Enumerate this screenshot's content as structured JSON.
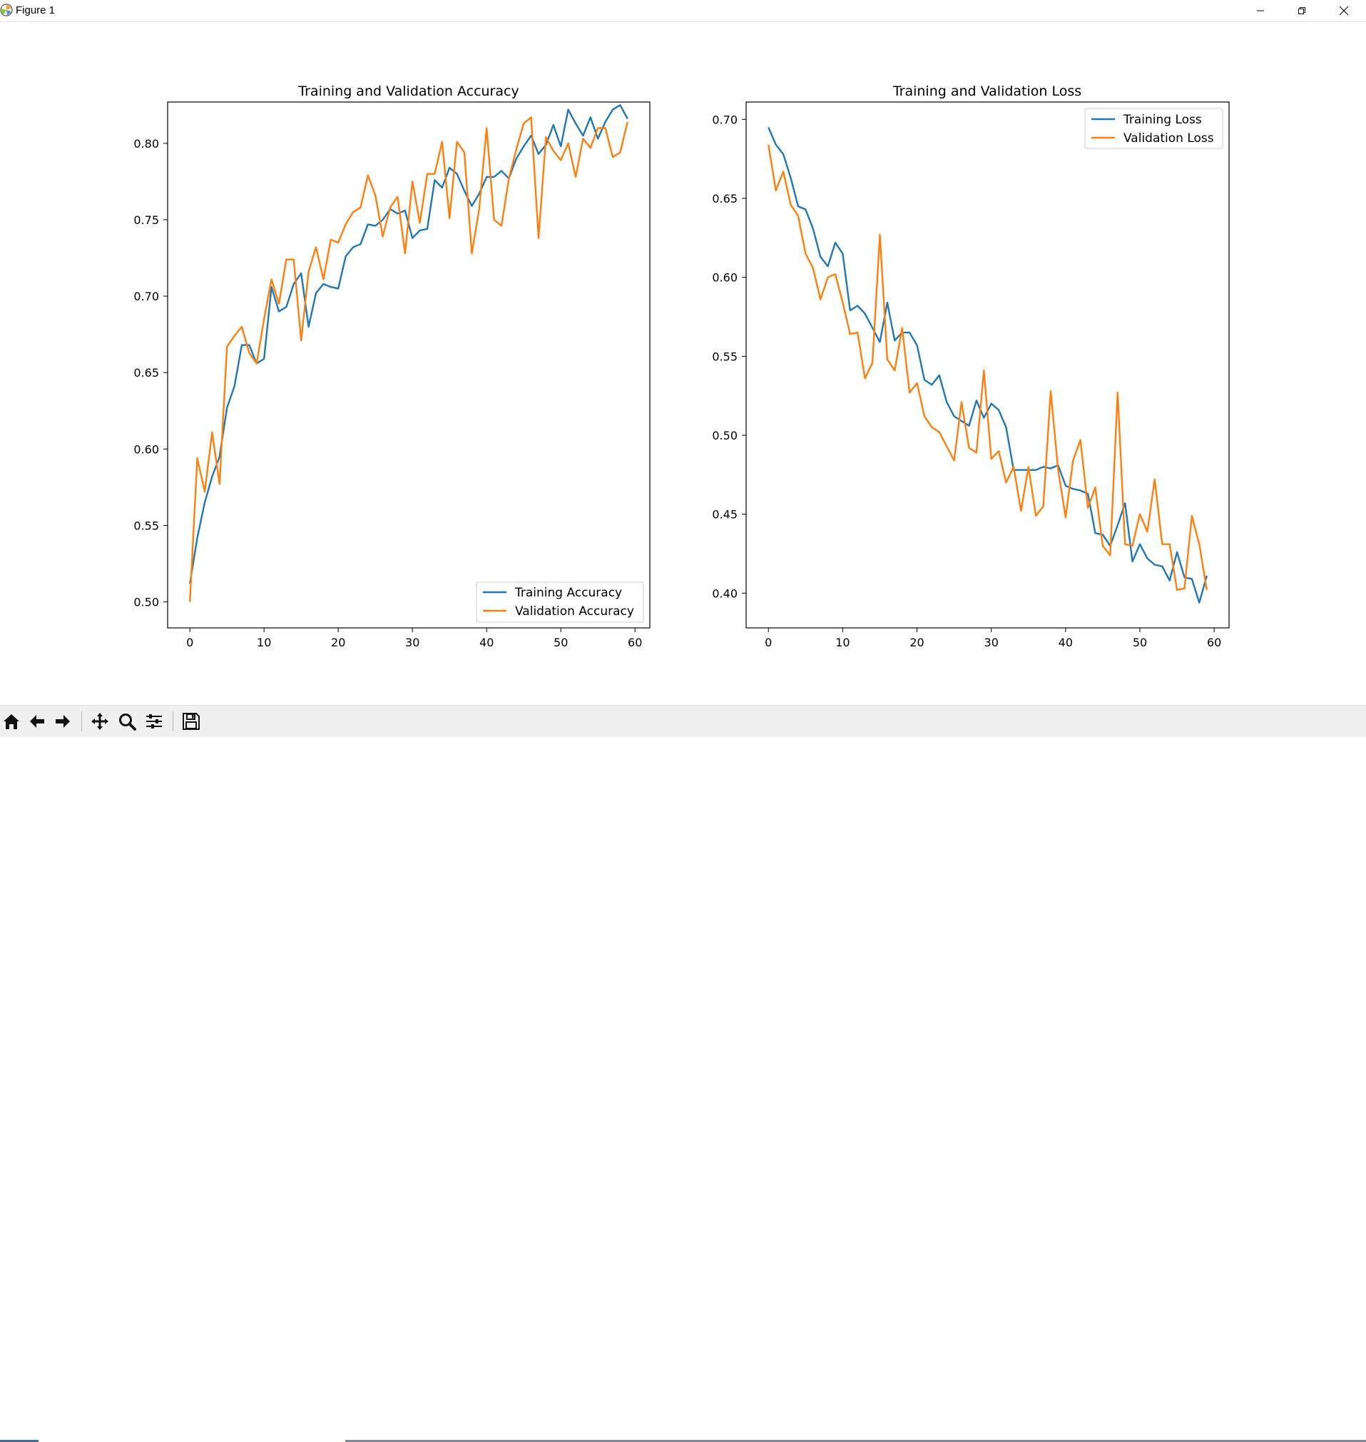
{
  "window": {
    "title": "Figure 1"
  },
  "toolbar": {
    "buttons": [
      {
        "name": "home-icon"
      },
      {
        "name": "back-arrow-icon"
      },
      {
        "name": "forward-arrow-icon"
      },
      {
        "name": "pan-icon"
      },
      {
        "name": "zoom-icon"
      },
      {
        "name": "configure-subplots-icon"
      },
      {
        "name": "save-icon"
      }
    ]
  },
  "colors": {
    "training": "#1f77b4",
    "validation": "#ff7f0e"
  },
  "chart_data": [
    {
      "type": "line",
      "title": "Training and Validation Accuracy",
      "xlabel": "",
      "ylabel": "",
      "xlim": [
        -3,
        62
      ],
      "ylim": [
        0.483,
        0.827
      ],
      "xticks": [
        0,
        10,
        20,
        30,
        40,
        50,
        60
      ],
      "xtick_labels": [
        "0",
        "10",
        "20",
        "30",
        "40",
        "50",
        "60"
      ],
      "yticks": [
        0.5,
        0.55,
        0.6,
        0.65,
        0.7,
        0.75,
        0.8
      ],
      "ytick_labels": [
        "0.50",
        "0.55",
        "0.60",
        "0.65",
        "0.70",
        "0.75",
        "0.80"
      ],
      "grid": false,
      "legend_position": "lower-right",
      "x": [
        0,
        1,
        2,
        3,
        4,
        5,
        6,
        7,
        8,
        9,
        10,
        11,
        12,
        13,
        14,
        15,
        16,
        17,
        18,
        19,
        20,
        21,
        22,
        23,
        24,
        25,
        26,
        27,
        28,
        29,
        30,
        31,
        32,
        33,
        34,
        35,
        36,
        37,
        38,
        39,
        40,
        41,
        42,
        43,
        44,
        45,
        46,
        47,
        48,
        49,
        50,
        51,
        52,
        53,
        54,
        55,
        56,
        57,
        58,
        59
      ],
      "series": [
        {
          "name": "Training Accuracy",
          "values": [
            0.512,
            0.542,
            0.565,
            0.582,
            0.595,
            0.627,
            0.641,
            0.668,
            0.668,
            0.656,
            0.659,
            0.706,
            0.69,
            0.693,
            0.708,
            0.715,
            0.68,
            0.702,
            0.708,
            0.706,
            0.705,
            0.726,
            0.732,
            0.734,
            0.747,
            0.746,
            0.75,
            0.757,
            0.754,
            0.756,
            0.738,
            0.743,
            0.744,
            0.776,
            0.771,
            0.784,
            0.78,
            0.769,
            0.759,
            0.767,
            0.778,
            0.778,
            0.782,
            0.777,
            0.79,
            0.798,
            0.805,
            0.793,
            0.799,
            0.812,
            0.798,
            0.822,
            0.813,
            0.805,
            0.817,
            0.803,
            0.814,
            0.822,
            0.825,
            0.816
          ]
        },
        {
          "name": "Validation Accuracy",
          "values": [
            0.5,
            0.594,
            0.572,
            0.611,
            0.577,
            0.667,
            0.674,
            0.68,
            0.663,
            0.656,
            0.685,
            0.711,
            0.695,
            0.724,
            0.724,
            0.671,
            0.716,
            0.732,
            0.711,
            0.737,
            0.735,
            0.747,
            0.755,
            0.758,
            0.779,
            0.766,
            0.739,
            0.758,
            0.765,
            0.728,
            0.775,
            0.748,
            0.78,
            0.78,
            0.801,
            0.751,
            0.801,
            0.794,
            0.728,
            0.757,
            0.81,
            0.75,
            0.746,
            0.777,
            0.796,
            0.813,
            0.817,
            0.738,
            0.804,
            0.795,
            0.789,
            0.8,
            0.778,
            0.803,
            0.797,
            0.81,
            0.81,
            0.791,
            0.794,
            0.814
          ]
        }
      ]
    },
    {
      "type": "line",
      "title": "Training and Validation Loss",
      "xlabel": "",
      "ylabel": "",
      "xlim": [
        -3,
        62
      ],
      "ylim": [
        0.378,
        0.711
      ],
      "xticks": [
        0,
        10,
        20,
        30,
        40,
        50,
        60
      ],
      "xtick_labels": [
        "0",
        "10",
        "20",
        "30",
        "40",
        "50",
        "60"
      ],
      "yticks": [
        0.4,
        0.45,
        0.5,
        0.55,
        0.6,
        0.65,
        0.7
      ],
      "ytick_labels": [
        "0.40",
        "0.45",
        "0.50",
        "0.55",
        "0.60",
        "0.65",
        "0.70"
      ],
      "grid": false,
      "legend_position": "upper-right",
      "x": [
        0,
        1,
        2,
        3,
        4,
        5,
        6,
        7,
        8,
        9,
        10,
        11,
        12,
        13,
        14,
        15,
        16,
        17,
        18,
        19,
        20,
        21,
        22,
        23,
        24,
        25,
        26,
        27,
        28,
        29,
        30,
        31,
        32,
        33,
        34,
        35,
        36,
        37,
        38,
        39,
        40,
        41,
        42,
        43,
        44,
        45,
        46,
        47,
        48,
        49,
        50,
        51,
        52,
        53,
        54,
        55,
        56,
        57,
        58,
        59
      ],
      "series": [
        {
          "name": "Training Loss",
          "values": [
            0.695,
            0.684,
            0.678,
            0.663,
            0.645,
            0.643,
            0.631,
            0.613,
            0.607,
            0.622,
            0.615,
            0.579,
            0.582,
            0.577,
            0.568,
            0.559,
            0.584,
            0.56,
            0.565,
            0.565,
            0.557,
            0.535,
            0.532,
            0.538,
            0.521,
            0.512,
            0.509,
            0.506,
            0.522,
            0.511,
            0.52,
            0.516,
            0.505,
            0.478,
            0.478,
            0.478,
            0.478,
            0.48,
            0.479,
            0.481,
            0.468,
            0.466,
            0.465,
            0.463,
            0.438,
            0.437,
            0.43,
            0.443,
            0.457,
            0.42,
            0.431,
            0.422,
            0.418,
            0.417,
            0.408,
            0.426,
            0.41,
            0.409,
            0.394,
            0.411
          ]
        },
        {
          "name": "Validation Loss",
          "values": [
            0.684,
            0.655,
            0.667,
            0.646,
            0.639,
            0.615,
            0.606,
            0.586,
            0.6,
            0.602,
            0.584,
            0.564,
            0.565,
            0.536,
            0.546,
            0.627,
            0.548,
            0.541,
            0.568,
            0.527,
            0.533,
            0.512,
            0.505,
            0.502,
            0.493,
            0.484,
            0.521,
            0.492,
            0.489,
            0.541,
            0.485,
            0.49,
            0.47,
            0.48,
            0.452,
            0.48,
            0.449,
            0.455,
            0.528,
            0.478,
            0.448,
            0.484,
            0.497,
            0.454,
            0.467,
            0.43,
            0.424,
            0.527,
            0.431,
            0.43,
            0.45,
            0.439,
            0.472,
            0.431,
            0.431,
            0.402,
            0.403,
            0.449,
            0.431,
            0.402
          ]
        }
      ]
    }
  ]
}
